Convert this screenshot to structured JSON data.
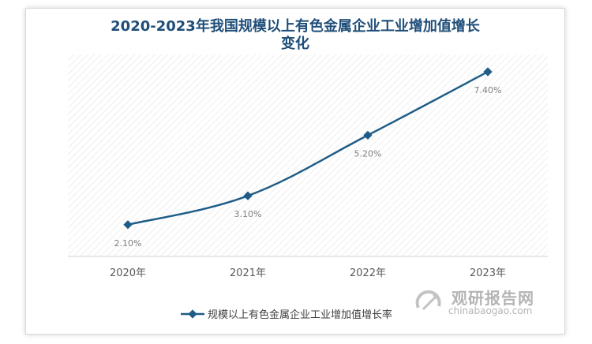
{
  "chart_data": {
    "type": "line",
    "title": "2020-2023年我国规模以上有色金属企业工业增加值增长变化",
    "title_lines": [
      "2020-2023年我国规模以上有色金属企业工业增加值增长",
      "变化"
    ],
    "categories": [
      "2020年",
      "2021年",
      "2022年",
      "2023年"
    ],
    "series": [
      {
        "name": "规模以上有色金属企业工业增加值增长率",
        "values": [
          2.1,
          3.1,
          5.2,
          7.4
        ],
        "labels": [
          "2.10%",
          "3.10%",
          "5.20%",
          "7.40%"
        ],
        "color": "#1f5c87"
      }
    ],
    "ylim": [
      1.0,
      8.0
    ],
    "legend_position": "bottom",
    "grid": false,
    "plot_background": "hatched"
  },
  "watermark": {
    "cn": "观研报告网",
    "en": "chinabaogao.com"
  },
  "colors": {
    "title": "#1f4e79",
    "line": "#1f5c87",
    "hatch": "#e3e3e3"
  }
}
